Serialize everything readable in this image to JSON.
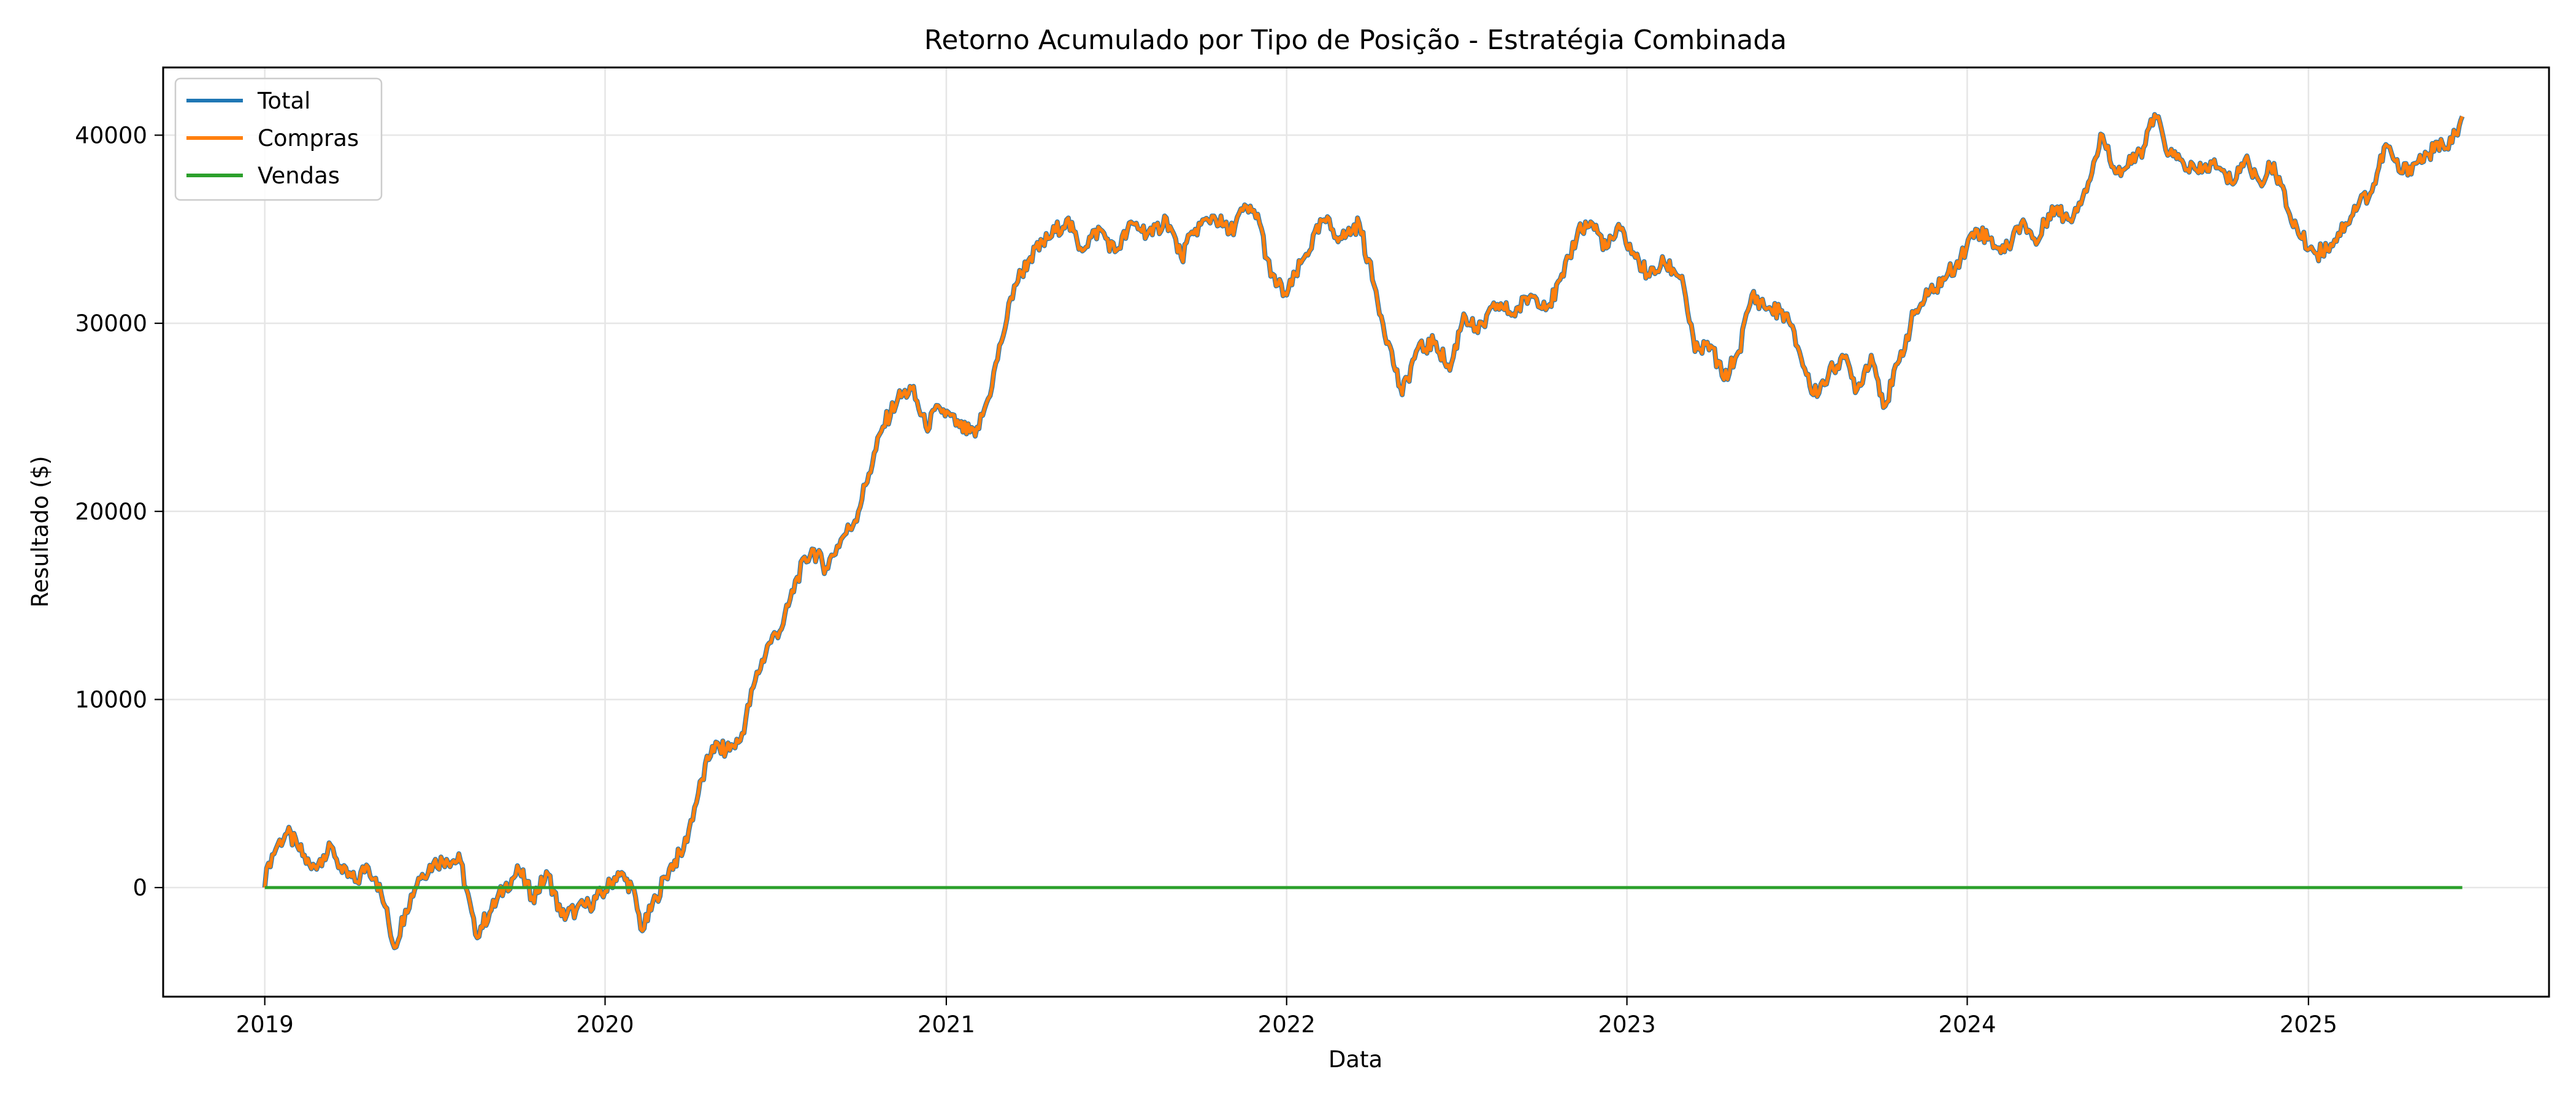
{
  "chart_data": {
    "type": "line",
    "title": "Retorno Acumulado por Tipo de Posição - Estratégia Combinada",
    "xlabel": "Data",
    "ylabel": "Resultado ($)",
    "xlim": [
      "2018-09-14",
      "2025-09-16"
    ],
    "ylim": [
      -5800,
      43600
    ],
    "x_ticks": [
      "2019",
      "2020",
      "2021",
      "2022",
      "2023",
      "2024",
      "2025"
    ],
    "y_ticks": [
      0,
      10000,
      20000,
      30000,
      40000
    ],
    "grid": true,
    "legend_position": "top-left",
    "colors": {
      "Total": "#1f77b4",
      "Compras": "#ff7f0e",
      "Vendas": "#2ca02c"
    },
    "series": [
      {
        "name": "Total",
        "points": [
          [
            "2019-01-01",
            0
          ],
          [
            "2019-01-05",
            1300
          ],
          [
            "2019-01-15",
            2300
          ],
          [
            "2019-01-25",
            2900
          ],
          [
            "2019-02-05",
            2200
          ],
          [
            "2019-02-20",
            1000
          ],
          [
            "2019-03-05",
            1700
          ],
          [
            "2019-03-15",
            2100
          ],
          [
            "2019-03-25",
            800
          ],
          [
            "2019-04-10",
            300
          ],
          [
            "2019-04-20",
            1200
          ],
          [
            "2019-04-30",
            500
          ],
          [
            "2019-05-10",
            -1000
          ],
          [
            "2019-05-20",
            -3200
          ],
          [
            "2019-06-01",
            -1200
          ],
          [
            "2019-06-15",
            500
          ],
          [
            "2019-07-01",
            1300
          ],
          [
            "2019-07-15",
            1500
          ],
          [
            "2019-07-30",
            1400
          ],
          [
            "2019-08-15",
            -2500
          ],
          [
            "2019-09-01",
            -1200
          ],
          [
            "2019-09-15",
            0
          ],
          [
            "2019-10-01",
            900
          ],
          [
            "2019-10-15",
            -500
          ],
          [
            "2019-11-01",
            700
          ],
          [
            "2019-11-15",
            -1500
          ],
          [
            "2019-12-01",
            -1200
          ],
          [
            "2019-12-15",
            -900
          ],
          [
            "2020-01-01",
            -200
          ],
          [
            "2020-01-15",
            800
          ],
          [
            "2020-01-30",
            0
          ],
          [
            "2020-02-10",
            -2300
          ],
          [
            "2020-02-25",
            -500
          ],
          [
            "2020-03-10",
            1000
          ],
          [
            "2020-03-25",
            2000
          ],
          [
            "2020-04-10",
            5000
          ],
          [
            "2020-04-25",
            7500
          ],
          [
            "2020-05-10",
            7300
          ],
          [
            "2020-05-25",
            7800
          ],
          [
            "2020-06-10",
            11000
          ],
          [
            "2020-06-25",
            13000
          ],
          [
            "2020-07-10",
            14000
          ],
          [
            "2020-07-25",
            16500
          ],
          [
            "2020-08-10",
            18000
          ],
          [
            "2020-08-25",
            17000
          ],
          [
            "2020-09-10",
            18500
          ],
          [
            "2020-09-25",
            19500
          ],
          [
            "2020-10-10",
            22000
          ],
          [
            "2020-10-25",
            24500
          ],
          [
            "2020-11-10",
            26000
          ],
          [
            "2020-11-25",
            26500
          ],
          [
            "2020-12-10",
            24500
          ],
          [
            "2020-12-25",
            25500
          ],
          [
            "2021-01-15",
            24500
          ],
          [
            "2021-02-01",
            24000
          ],
          [
            "2021-02-15",
            26000
          ],
          [
            "2021-03-01",
            29000
          ],
          [
            "2021-03-15",
            32000
          ],
          [
            "2021-04-01",
            33500
          ],
          [
            "2021-04-20",
            34500
          ],
          [
            "2021-05-10",
            35500
          ],
          [
            "2021-05-25",
            34000
          ],
          [
            "2021-06-15",
            35000
          ],
          [
            "2021-07-01",
            33800
          ],
          [
            "2021-07-20",
            35300
          ],
          [
            "2021-08-10",
            34700
          ],
          [
            "2021-08-25",
            35600
          ],
          [
            "2021-09-10",
            33500
          ],
          [
            "2021-09-25",
            35000
          ],
          [
            "2021-10-15",
            35700
          ],
          [
            "2021-11-01",
            34800
          ],
          [
            "2021-11-15",
            36000
          ],
          [
            "2021-12-01",
            35800
          ],
          [
            "2021-12-15",
            32500
          ],
          [
            "2022-01-01",
            31500
          ],
          [
            "2022-01-20",
            33500
          ],
          [
            "2022-02-10",
            35500
          ],
          [
            "2022-03-01",
            34500
          ],
          [
            "2022-03-20",
            35300
          ],
          [
            "2022-04-05",
            32000
          ],
          [
            "2022-04-20",
            29000
          ],
          [
            "2022-05-05",
            26200
          ],
          [
            "2022-05-20",
            28500
          ],
          [
            "2022-06-10",
            29000
          ],
          [
            "2022-06-25",
            27500
          ],
          [
            "2022-07-10",
            30500
          ],
          [
            "2022-07-25",
            29500
          ],
          [
            "2022-08-15",
            31000
          ],
          [
            "2022-09-01",
            30500
          ],
          [
            "2022-09-20",
            31500
          ],
          [
            "2022-10-10",
            31000
          ],
          [
            "2022-10-25",
            32500
          ],
          [
            "2022-11-10",
            35000
          ],
          [
            "2022-11-25",
            35300
          ],
          [
            "2022-12-10",
            34000
          ],
          [
            "2022-12-25",
            35000
          ],
          [
            "2023-01-10",
            33500
          ],
          [
            "2023-01-25",
            32500
          ],
          [
            "2023-02-10",
            33200
          ],
          [
            "2023-03-01",
            32500
          ],
          [
            "2023-03-15",
            28500
          ],
          [
            "2023-04-01",
            28800
          ],
          [
            "2023-04-15",
            27000
          ],
          [
            "2023-05-01",
            28500
          ],
          [
            "2023-05-15",
            31500
          ],
          [
            "2023-06-01",
            30800
          ],
          [
            "2023-06-20",
            30500
          ],
          [
            "2023-07-05",
            28500
          ],
          [
            "2023-07-20",
            26200
          ],
          [
            "2023-08-05",
            27200
          ],
          [
            "2023-08-20",
            28300
          ],
          [
            "2023-09-05",
            26500
          ],
          [
            "2023-09-20",
            28300
          ],
          [
            "2023-10-05",
            25600
          ],
          [
            "2023-10-20",
            28000
          ],
          [
            "2023-11-05",
            30500
          ],
          [
            "2023-11-20",
            31500
          ],
          [
            "2023-12-10",
            32500
          ],
          [
            "2023-12-25",
            33500
          ],
          [
            "2024-01-10",
            35000
          ],
          [
            "2024-01-25",
            34500
          ],
          [
            "2024-02-10",
            33800
          ],
          [
            "2024-03-01",
            35500
          ],
          [
            "2024-03-15",
            34200
          ],
          [
            "2024-04-01",
            36200
          ],
          [
            "2024-04-20",
            35500
          ],
          [
            "2024-05-10",
            37500
          ],
          [
            "2024-05-25",
            40000
          ],
          [
            "2024-06-10",
            38000
          ],
          [
            "2024-06-25",
            38500
          ],
          [
            "2024-07-10",
            39500
          ],
          [
            "2024-07-20",
            41100
          ],
          [
            "2024-08-05",
            39000
          ],
          [
            "2024-08-20",
            38500
          ],
          [
            "2024-09-05",
            38000
          ],
          [
            "2024-09-20",
            38500
          ],
          [
            "2024-10-10",
            37500
          ],
          [
            "2024-10-25",
            38700
          ],
          [
            "2024-11-10",
            37500
          ],
          [
            "2024-11-25",
            38500
          ],
          [
            "2024-12-10",
            36000
          ],
          [
            "2024-12-25",
            34500
          ],
          [
            "2025-01-10",
            33700
          ],
          [
            "2025-01-25",
            34200
          ],
          [
            "2025-02-10",
            35300
          ],
          [
            "2025-02-25",
            36500
          ],
          [
            "2025-03-10",
            37000
          ],
          [
            "2025-03-25",
            39500
          ],
          [
            "2025-04-10",
            38000
          ],
          [
            "2025-04-25",
            38500
          ],
          [
            "2025-05-10",
            39000
          ],
          [
            "2025-05-25",
            39500
          ],
          [
            "2025-06-10",
            40000
          ],
          [
            "2025-06-15",
            41000
          ]
        ]
      },
      {
        "name": "Compras",
        "same_values_as": "Total"
      },
      {
        "name": "Vendas",
        "points": [
          [
            "2019-01-01",
            0
          ],
          [
            "2025-06-15",
            0
          ]
        ]
      }
    ]
  }
}
